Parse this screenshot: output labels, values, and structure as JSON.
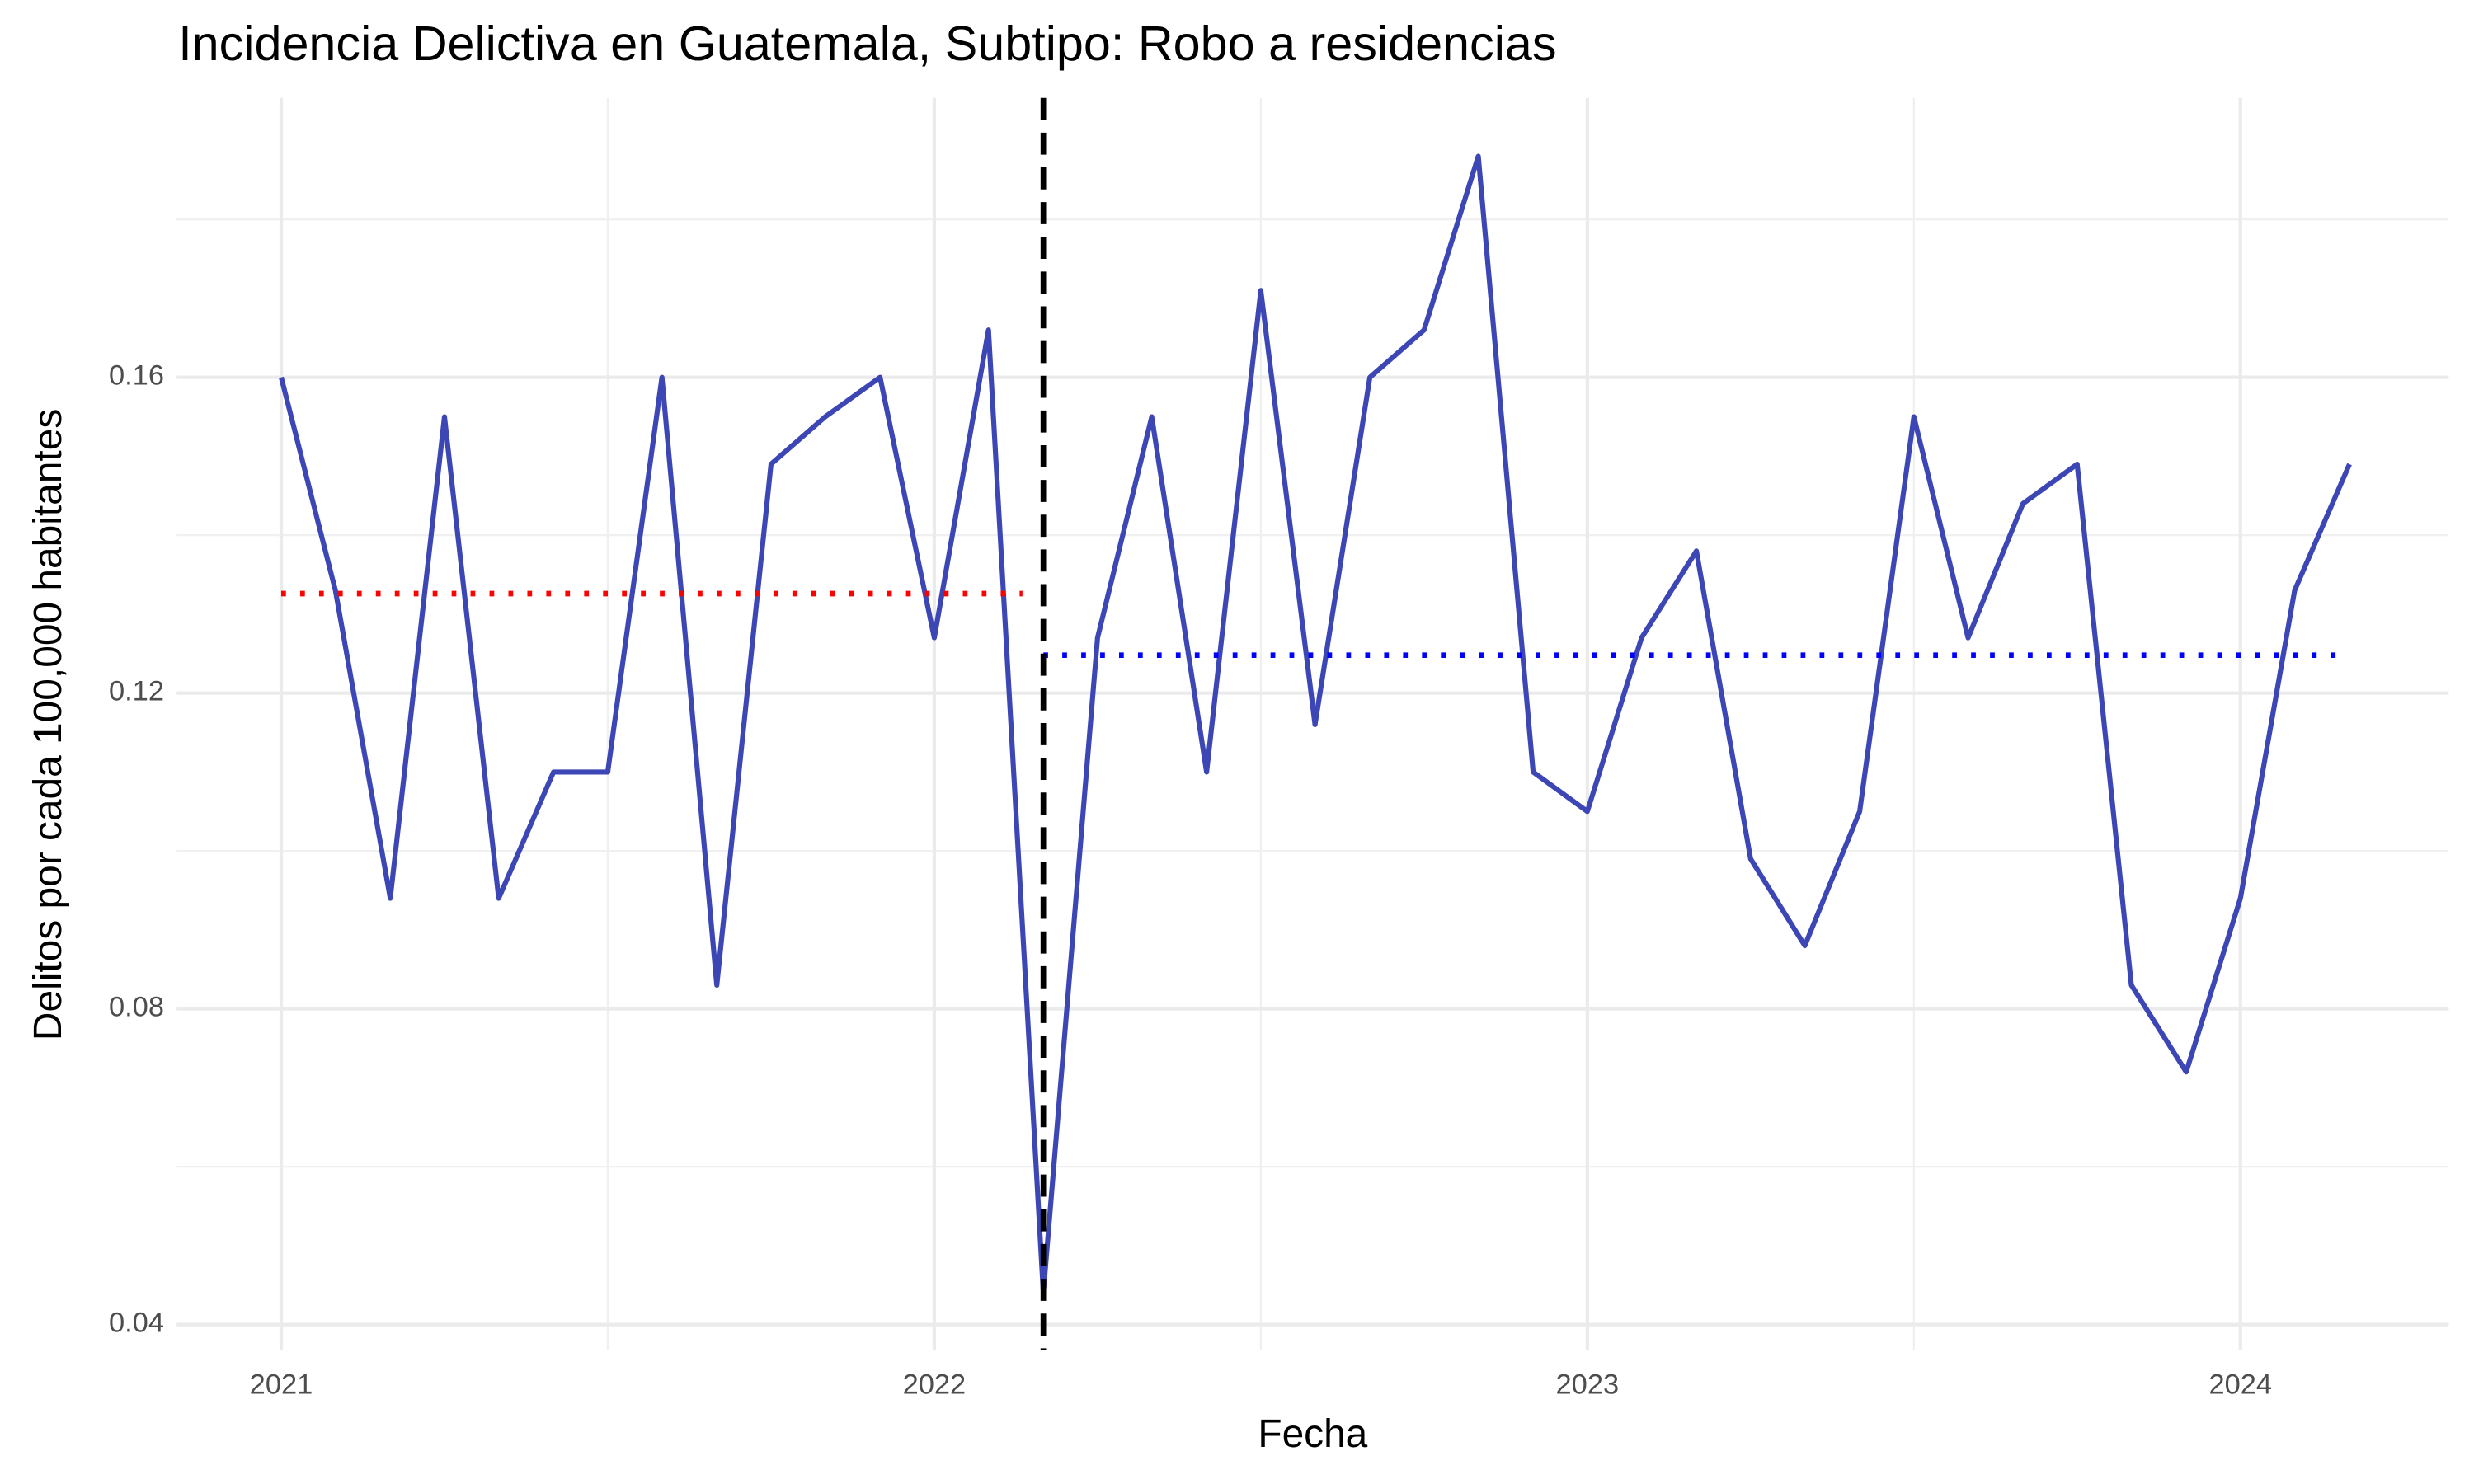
{
  "chart_data": {
    "type": "line",
    "title": "Incidencia Delictiva en Guatemala, Subtipo: Robo a residencias",
    "x_label": "Fecha",
    "y_label": "Delitos por cada 100,000 habitantes",
    "x": [
      2021,
      2021.083,
      2021.167,
      2021.25,
      2021.333,
      2021.417,
      2021.5,
      2021.583,
      2021.667,
      2021.75,
      2021.833,
      2021.917,
      2022,
      2022.083,
      2022.167,
      2022.25,
      2022.333,
      2022.417,
      2022.5,
      2022.583,
      2022.667,
      2022.75,
      2022.833,
      2022.917,
      2023,
      2023.083,
      2023.167,
      2023.25,
      2023.333,
      2023.417,
      2023.5,
      2023.583,
      2023.667,
      2023.75,
      2023.833,
      2023.917,
      2024,
      2024.083,
      2024.167
    ],
    "series": [
      {
        "color": "#3c46b5",
        "values": [
          0.16,
          0.133,
          0.094,
          0.155,
          0.094,
          0.11,
          0.11,
          0.16,
          0.083,
          0.149,
          0.155,
          0.16,
          0.127,
          0.166,
          0.044,
          0.127,
          0.155,
          0.11,
          0.171,
          0.116,
          0.16,
          0.166,
          0.188,
          0.11,
          0.105,
          0.127,
          0.138,
          0.099,
          0.088,
          0.105,
          0.155,
          0.127,
          0.144,
          0.149,
          0.083,
          0.072,
          0.094,
          0.133,
          0.149
        ]
      }
    ],
    "reference_lines": [
      {
        "y": 0.1326,
        "x": [
          2021,
          2022.135
        ],
        "color": "#ff0000",
        "style": "dotted"
      },
      {
        "y": 0.1248,
        "x": [
          2022.167,
          2024.167
        ],
        "color": "#0000ff",
        "style": "dotted"
      }
    ],
    "vlines": [
      {
        "x": 2022.167,
        "color": "#000000",
        "style": "dashed"
      }
    ],
    "xlim": [
      2020.84,
      2024.319
    ],
    "ylim": [
      0.0368,
      0.1954
    ],
    "xticks": [
      2021,
      2022,
      2023,
      2024
    ],
    "minor_xticks": [
      2021.5,
      2022.5,
      2023.5
    ],
    "yticks": [
      0.04,
      0.08,
      0.12,
      0.16
    ],
    "minor_yticks": [
      0.06,
      0.1,
      0.14,
      0.18
    ],
    "grid": true
  }
}
